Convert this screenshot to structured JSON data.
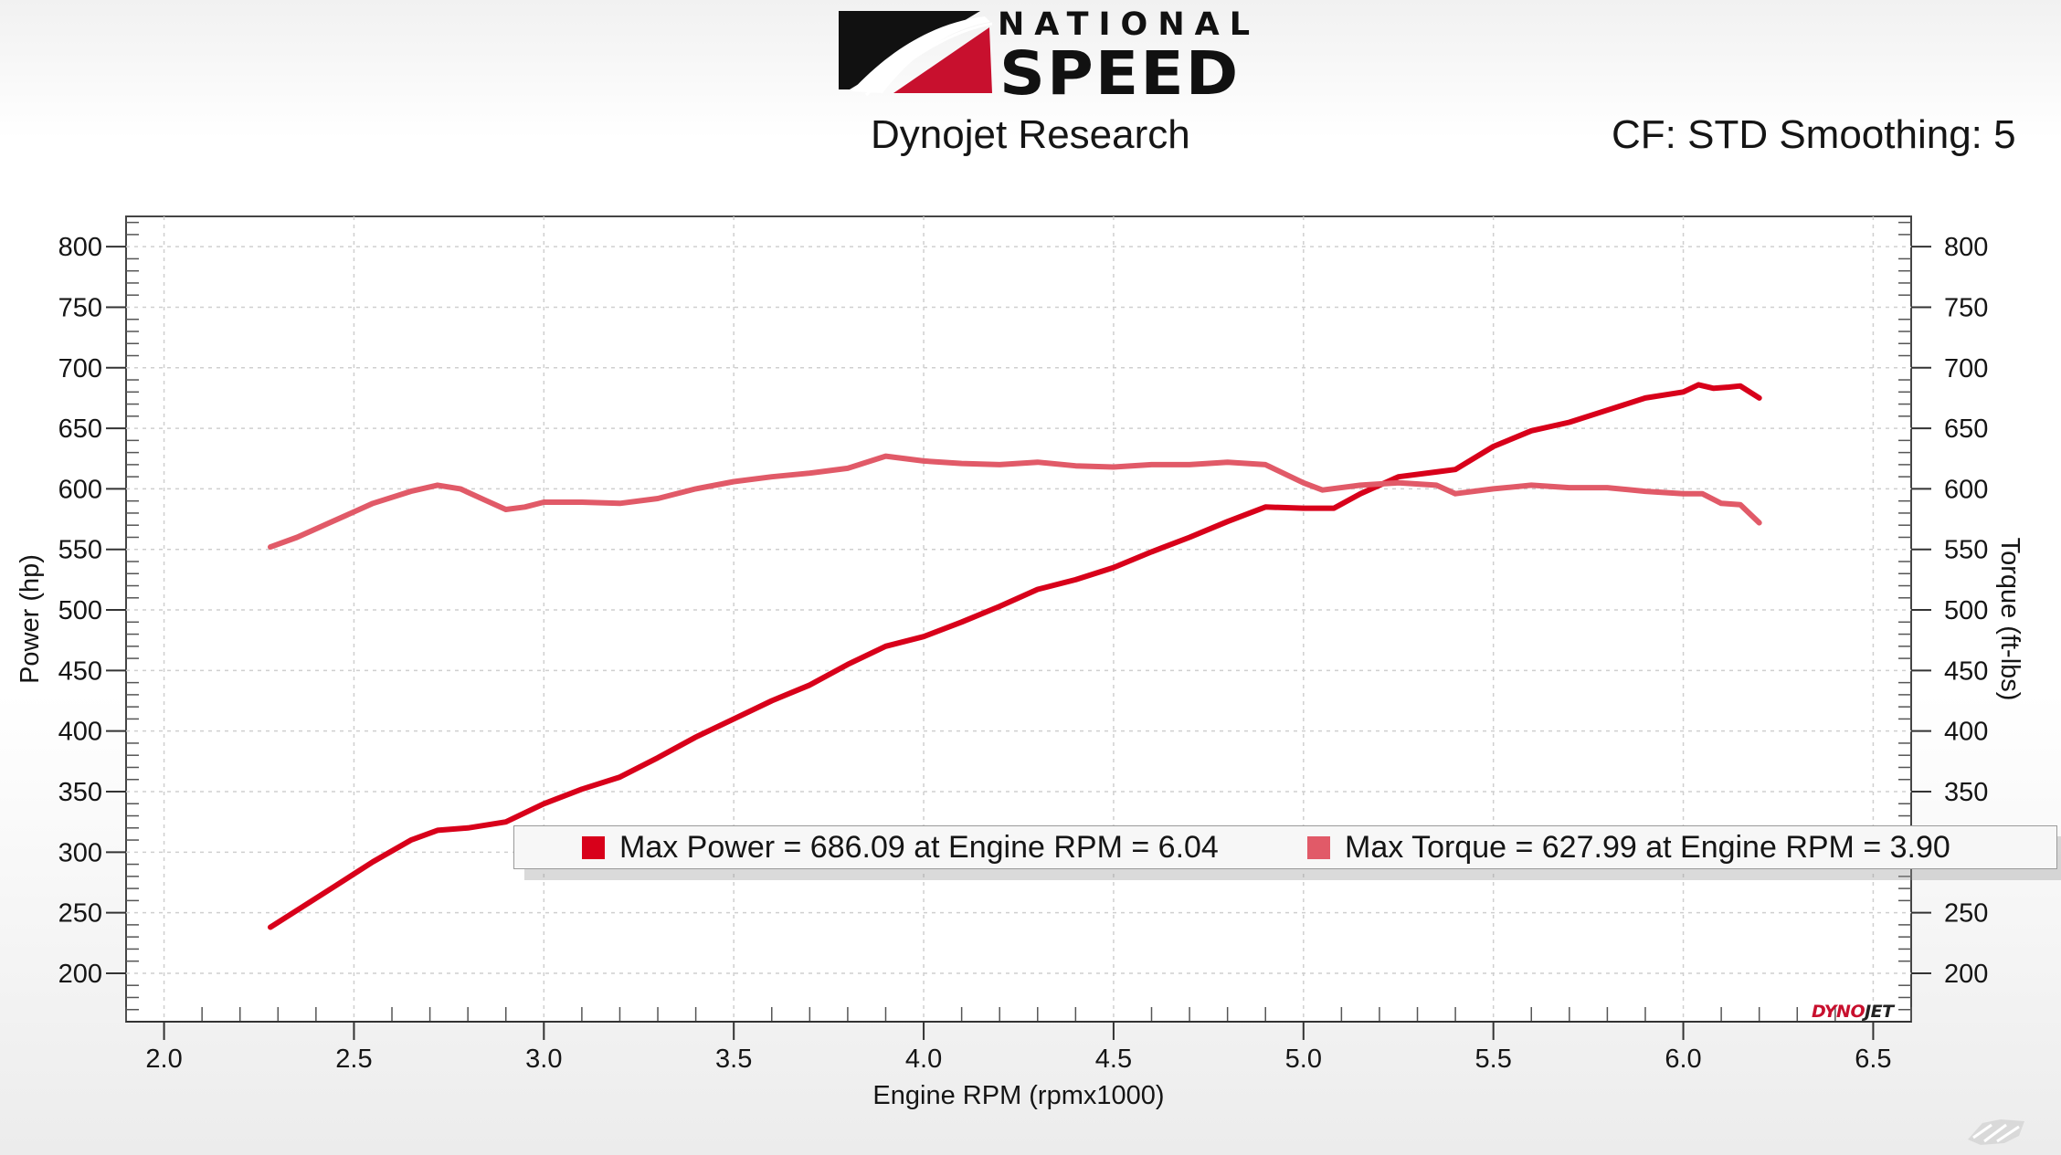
{
  "header": {
    "brand_top": "NATIONAL",
    "brand_bottom": "SPEED",
    "subtitle": "Dynojet Research",
    "settings": "CF: STD Smoothing: 5"
  },
  "colors": {
    "power": "#d8001a",
    "torque": "#e15a68",
    "logo_red": "#c8102e"
  },
  "icons": {
    "brand_logo": "national-speed-logo-icon",
    "watermark": "dynojet-logo-icon",
    "corner": "channel-watermark-icon"
  },
  "chart_data": {
    "type": "line",
    "xlabel": "Engine RPM (rpmx1000)",
    "ylabel_left": "Power (hp)",
    "ylabel_right": "Torque (ft-lbs)",
    "xlim": [
      1.9,
      6.6
    ],
    "ylim": [
      160,
      825
    ],
    "x_ticks": [
      "2.0",
      "2.5",
      "3.0",
      "3.5",
      "4.0",
      "4.5",
      "5.0",
      "5.5",
      "6.0",
      "6.5"
    ],
    "y_ticks": [
      "800",
      "750",
      "700",
      "650",
      "600",
      "550",
      "500",
      "450",
      "400",
      "350",
      "300",
      "250",
      "200"
    ],
    "grid": true,
    "legend_placement": "bottom-right",
    "series": [
      {
        "name": "Power",
        "axis": "left",
        "x": [
          2.28,
          2.35,
          2.45,
          2.55,
          2.65,
          2.72,
          2.8,
          2.9,
          3.0,
          3.1,
          3.2,
          3.3,
          3.4,
          3.5,
          3.6,
          3.7,
          3.8,
          3.9,
          4.0,
          4.1,
          4.2,
          4.3,
          4.4,
          4.5,
          4.6,
          4.7,
          4.8,
          4.9,
          5.0,
          5.08,
          5.15,
          5.25,
          5.35,
          5.4,
          5.5,
          5.6,
          5.7,
          5.8,
          5.9,
          6.0,
          6.04,
          6.08,
          6.12,
          6.15,
          6.2
        ],
        "y": [
          238,
          252,
          272,
          292,
          310,
          318,
          320,
          325,
          340,
          352,
          362,
          378,
          395,
          410,
          425,
          438,
          455,
          470,
          478,
          490,
          503,
          517,
          525,
          535,
          548,
          560,
          573,
          585,
          584,
          584,
          596,
          610,
          614,
          616,
          635,
          648,
          655,
          665,
          675,
          680,
          686,
          683,
          684,
          685,
          675
        ]
      },
      {
        "name": "Torque",
        "axis": "right",
        "x": [
          2.28,
          2.35,
          2.45,
          2.55,
          2.65,
          2.72,
          2.78,
          2.85,
          2.9,
          2.95,
          3.0,
          3.1,
          3.2,
          3.3,
          3.4,
          3.5,
          3.6,
          3.7,
          3.8,
          3.9,
          4.0,
          4.1,
          4.2,
          4.3,
          4.4,
          4.5,
          4.6,
          4.7,
          4.8,
          4.9,
          5.0,
          5.05,
          5.15,
          5.25,
          5.35,
          5.4,
          5.5,
          5.6,
          5.7,
          5.8,
          5.9,
          6.0,
          6.05,
          6.1,
          6.15,
          6.2
        ],
        "y": [
          552,
          560,
          574,
          588,
          598,
          603,
          600,
          590,
          583,
          585,
          589,
          589,
          588,
          592,
          600,
          606,
          610,
          613,
          617,
          627,
          623,
          621,
          620,
          622,
          619,
          618,
          620,
          620,
          622,
          620,
          605,
          599,
          603,
          605,
          603,
          596,
          600,
          603,
          601,
          601,
          598,
          596,
          596,
          588,
          587,
          572
        ]
      }
    ],
    "annotations": [
      {
        "series": "Power",
        "text": "Max Power = 686.09 at Engine RPM = 6.04"
      },
      {
        "series": "Torque",
        "text": "Max Torque = 627.99 at Engine RPM = 3.90"
      }
    ]
  }
}
